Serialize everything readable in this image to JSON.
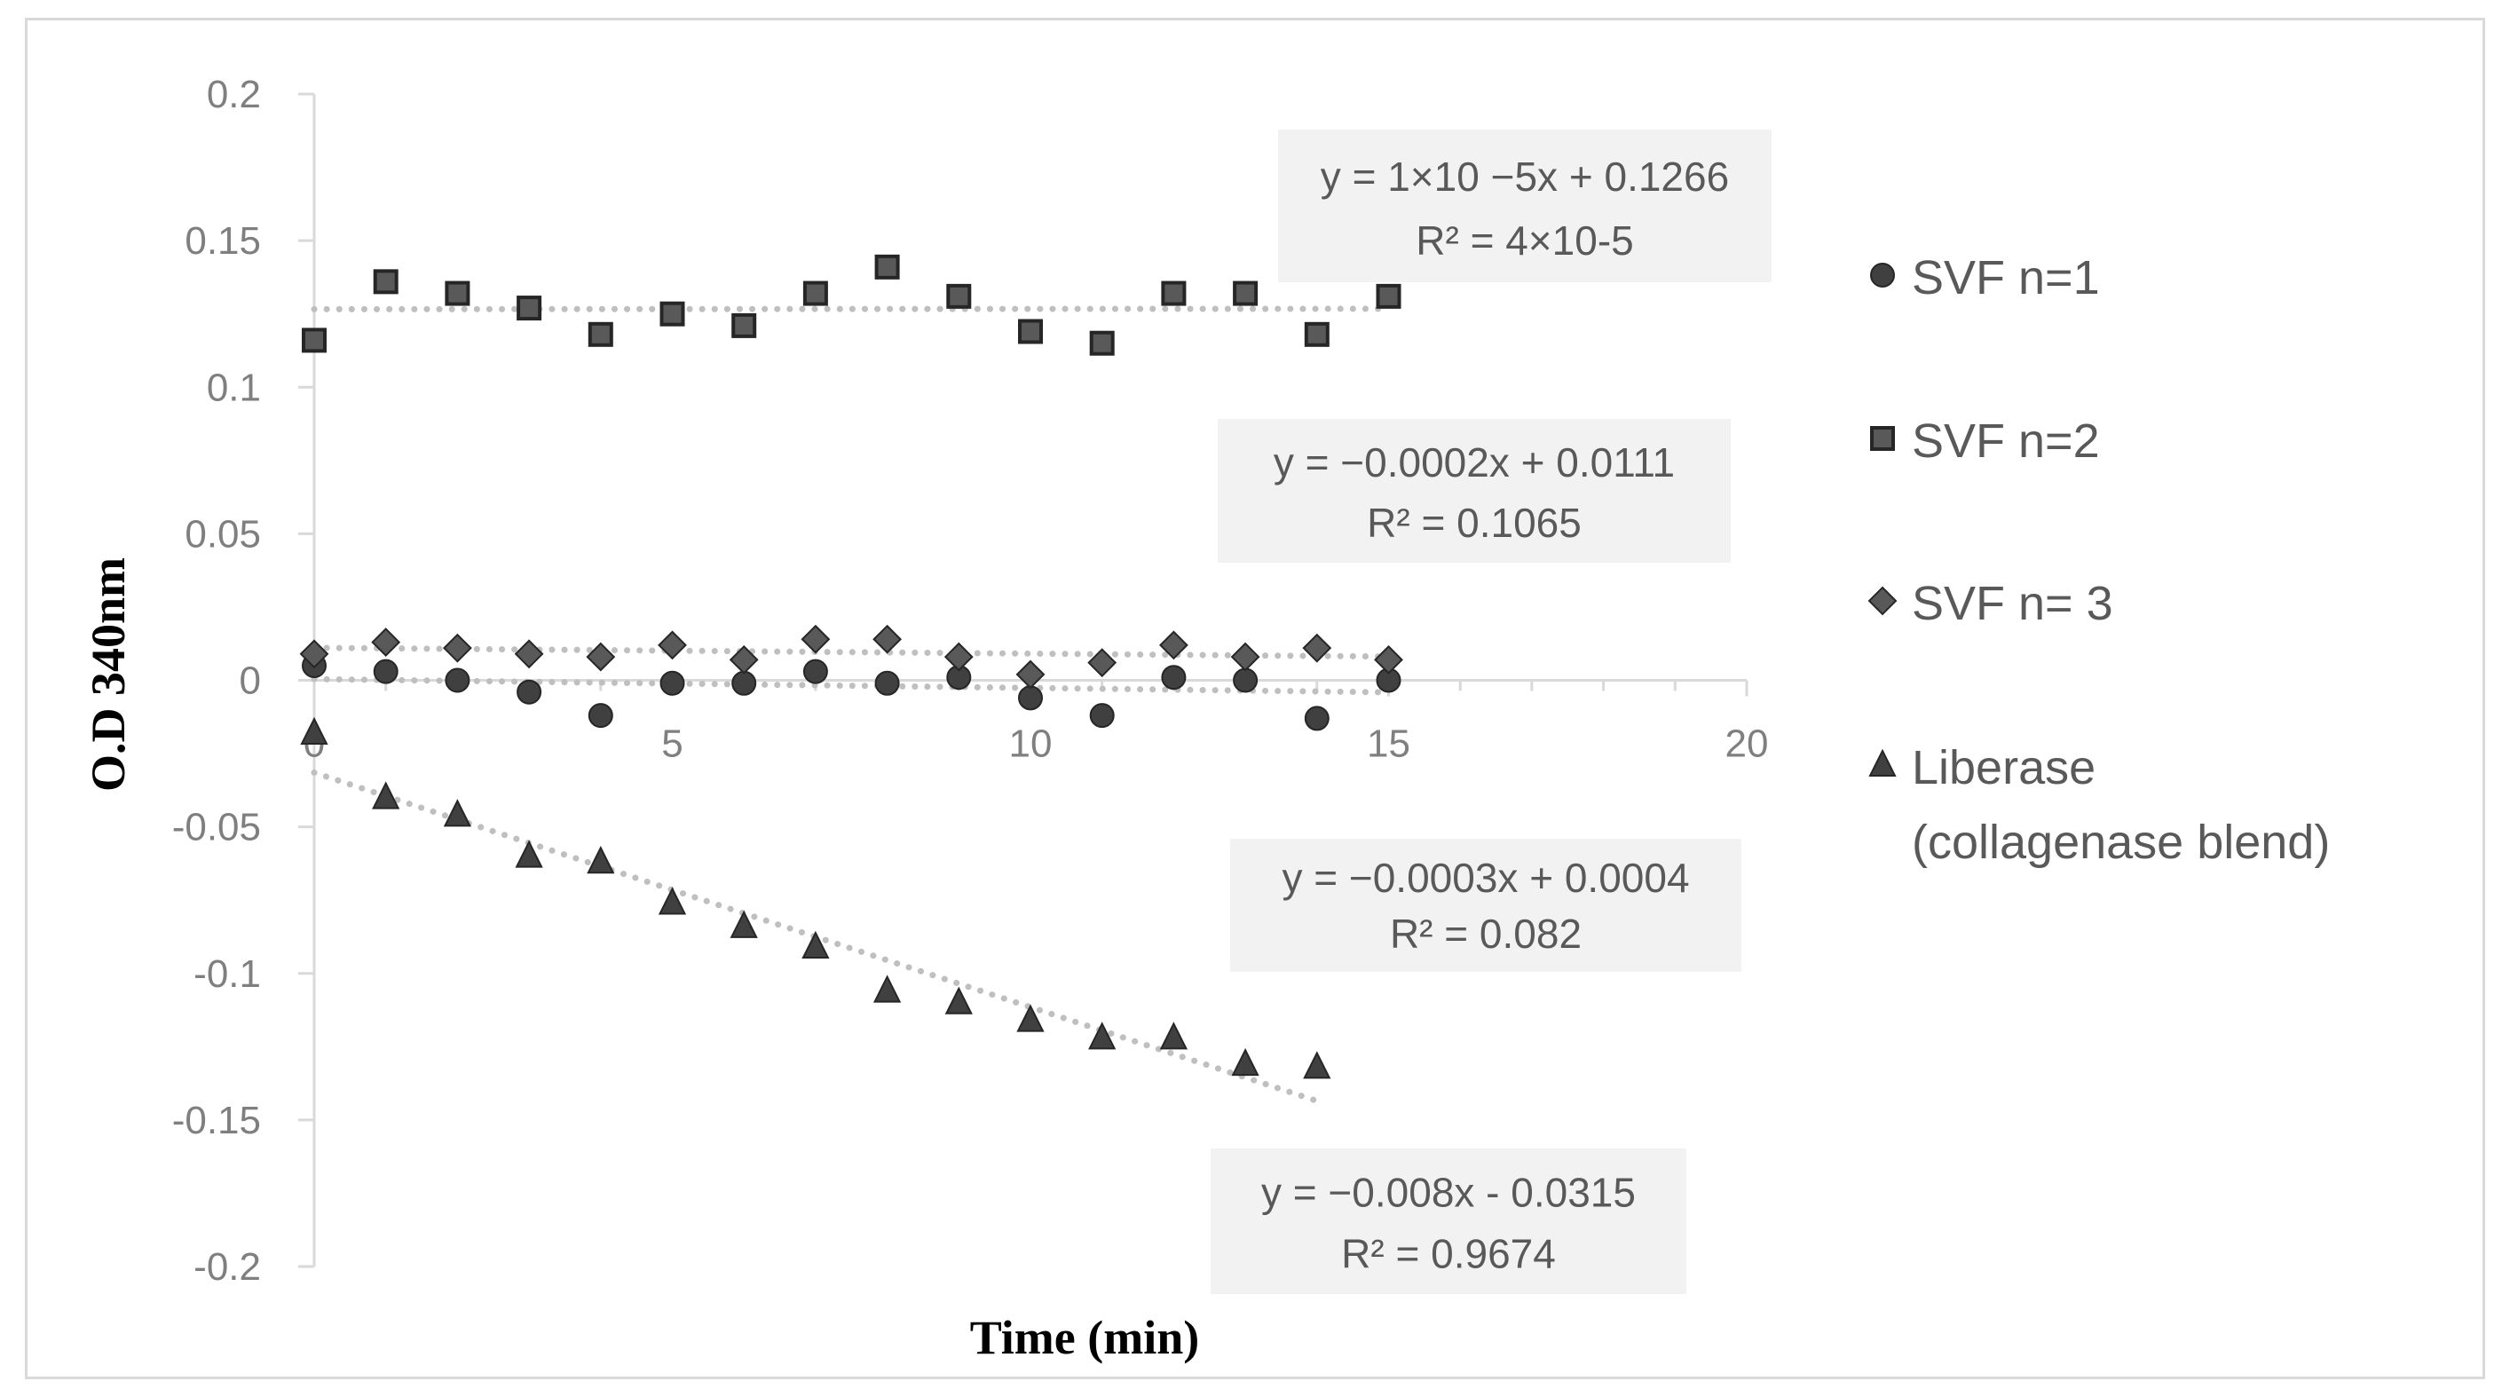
{
  "chart_data": {
    "type": "scatter",
    "title": "",
    "xlabel": "Time (min)",
    "ylabel": "O.D 340nm",
    "xlim": [
      0,
      20
    ],
    "ylim": [
      -0.2,
      0.2
    ],
    "x_ticks": [
      "0",
      "5",
      "10",
      "15",
      "20"
    ],
    "y_ticks": [
      "0.2",
      "0.15",
      "0.1",
      "0.05",
      "0",
      "-0.05",
      "-0.1",
      "-0.15",
      "-0.2"
    ],
    "grid": false,
    "legend_position": "right",
    "series": [
      {
        "name": "SVF n=1",
        "marker": "circle",
        "color": "#404040",
        "x": [
          0,
          1,
          2,
          3,
          4,
          5,
          6,
          7,
          8,
          9,
          10,
          11,
          12,
          13,
          14,
          15
        ],
        "y": [
          0.005,
          0.003,
          0.0,
          -0.004,
          -0.012,
          -0.001,
          -0.001,
          0.003,
          -0.001,
          0.001,
          -0.006,
          -0.012,
          0.001,
          0.0,
          -0.013,
          0.0
        ],
        "trendline": {
          "slope": -0.0003,
          "intercept": 0.0004,
          "x_range": [
            0,
            15
          ],
          "equation": "y = −0.0003x + 0.0004",
          "r2": "R² = 0.082"
        }
      },
      {
        "name": "SVF n=2",
        "marker": "square",
        "color": "#595959",
        "x": [
          0,
          1,
          2,
          3,
          4,
          5,
          6,
          7,
          8,
          9,
          10,
          11,
          12,
          13,
          14,
          15
        ],
        "y": [
          0.116,
          0.136,
          0.132,
          0.127,
          0.118,
          0.125,
          0.121,
          0.132,
          0.141,
          0.131,
          0.119,
          0.115,
          0.132,
          0.132,
          0.118,
          0.131
        ],
        "trendline": {
          "slope": 1e-05,
          "intercept": 0.1266,
          "x_range": [
            0,
            15
          ],
          "equation": "y = 1×10 −5x + 0.1266",
          "r2": "R² = 4×10-5"
        }
      },
      {
        "name": "SVF n= 3",
        "marker": "diamond",
        "color": "#595959",
        "x": [
          0,
          1,
          2,
          3,
          4,
          5,
          6,
          7,
          8,
          9,
          10,
          11,
          12,
          13,
          14,
          15
        ],
        "y": [
          0.009,
          0.013,
          0.011,
          0.009,
          0.008,
          0.012,
          0.007,
          0.014,
          0.014,
          0.008,
          0.002,
          0.006,
          0.012,
          0.008,
          0.011,
          0.007
        ],
        "trendline": {
          "slope": -0.0002,
          "intercept": 0.0111,
          "x_range": [
            0,
            15
          ],
          "equation": "y = −0.0002x + 0.0111",
          "r2": "R² = 0.1065"
        }
      },
      {
        "name": "Liberase (collagenase blend)",
        "marker": "triangle",
        "color": "#404040",
        "x": [
          0,
          1,
          2,
          3,
          4,
          5,
          6,
          7,
          8,
          9,
          10,
          11,
          12,
          13,
          14
        ],
        "y": [
          -0.018,
          -0.04,
          -0.046,
          -0.06,
          -0.062,
          -0.076,
          -0.084,
          -0.091,
          -0.106,
          -0.11,
          -0.116,
          -0.122,
          -0.122,
          -0.131,
          -0.132
        ],
        "trendline": {
          "slope": -0.008,
          "intercept": -0.0315,
          "x_range": [
            0,
            14
          ],
          "equation": "y = −0.008x - 0.0315",
          "r2": "R² = 0.9674"
        }
      }
    ],
    "legend": {
      "items": [
        {
          "marker": "circle",
          "lines": [
            "SVF n=1"
          ]
        },
        {
          "marker": "square",
          "lines": [
            "SVF n=2"
          ]
        },
        {
          "marker": "diamond",
          "lines": [
            "SVF n= 3"
          ]
        },
        {
          "marker": "triangle",
          "lines": [
            "Liberase",
            "(collagenase blend)"
          ]
        }
      ]
    },
    "annotations": {
      "trendline_color": "#bfbfbf",
      "label_box_color": "#f2f2f2",
      "axis_color": "#d9d9d9"
    }
  }
}
